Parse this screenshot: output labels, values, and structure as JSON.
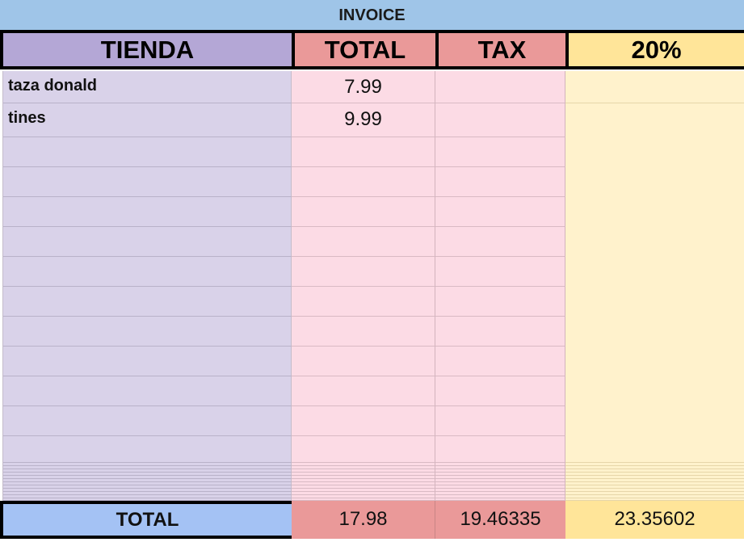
{
  "title": "INVOICE",
  "headers": [
    "TIENDA",
    "TOTAL",
    "TAX",
    "20%"
  ],
  "rows": [
    {
      "tienda": "taza donald",
      "total": "7.99",
      "tax": "",
      "pct": ""
    },
    {
      "tienda": "tines",
      "total": "9.99",
      "tax": "",
      "pct": ""
    }
  ],
  "totals": {
    "label": "TOTAL",
    "total": "17.98",
    "tax": "19.46335",
    "pct": "23.35602"
  },
  "colors": {
    "title": "#9fc5e8",
    "tienda_header": "#b4a7d6",
    "total_header": "#ea9999",
    "pct_header": "#ffe599",
    "total_label": "#a4c2f4"
  }
}
